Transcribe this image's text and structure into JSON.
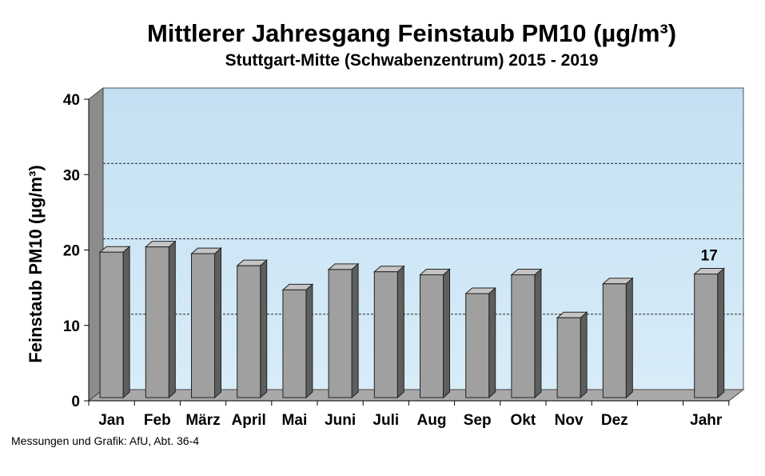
{
  "chart_data": {
    "type": "bar",
    "title": "Mittlerer Jahresgang Feinstaub PM10 (µg/m³)",
    "subtitle": "Stuttgart-Mitte (Schwabenzentrum) 2015 - 2019",
    "ylabel": "Feinstaub PM10 (µg/m³)",
    "xlabel": "",
    "ylim": [
      0,
      40
    ],
    "yticks": [
      "0",
      "10",
      "20",
      "30",
      "40"
    ],
    "categories": [
      "Jan",
      "Feb",
      "März",
      "April",
      "Mai",
      "Juni",
      "Juli",
      "Aug",
      "Sep",
      "Okt",
      "Nov",
      "Dez",
      "Jahr"
    ],
    "values": [
      19.5,
      20.2,
      19.3,
      17.7,
      14.5,
      17.2,
      16.9,
      16.5,
      14.0,
      16.5,
      10.8,
      15.3,
      16.6
    ],
    "annotation": {
      "category": "Jahr",
      "text": "17"
    },
    "grid": true,
    "bar_color": "#a0a0a0",
    "background_color": "#cde7f5"
  },
  "source": "Messungen und Grafik: AfU, Abt. 36-4"
}
